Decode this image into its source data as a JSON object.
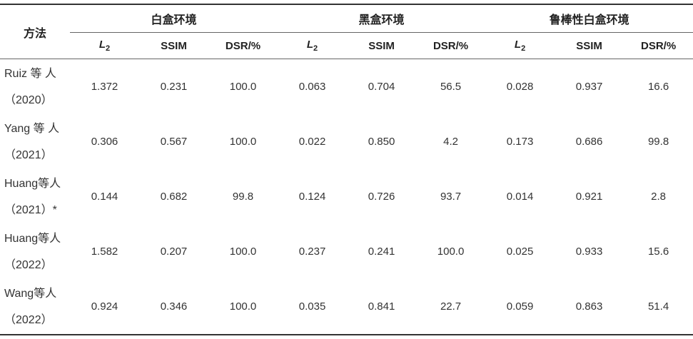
{
  "header": {
    "method_label": "方法",
    "groups": [
      "白盒环境",
      "黑盒环境",
      "鲁棒性白盒环境"
    ],
    "metric_l2": {
      "base": "L",
      "sub": "2"
    },
    "metric_ssim": "SSIM",
    "metric_dsr": "DSR/%"
  },
  "rows": [
    {
      "method_line1": "Ruiz 等 人",
      "method_line2": "（2020）",
      "values": [
        "1.372",
        "0.231",
        "100.0",
        "0.063",
        "0.704",
        "56.5",
        "0.028",
        "0.937",
        "16.6"
      ]
    },
    {
      "method_line1": "Yang 等 人",
      "method_line2": "（2021）",
      "values": [
        "0.306",
        "0.567",
        "100.0",
        "0.022",
        "0.850",
        "4.2",
        "0.173",
        "0.686",
        "99.8"
      ]
    },
    {
      "method_line1": "Huang等人",
      "method_line2": "（2021）*",
      "values": [
        "0.144",
        "0.682",
        "99.8",
        "0.124",
        "0.726",
        "93.7",
        "0.014",
        "0.921",
        "2.8"
      ]
    },
    {
      "method_line1": "Huang等人",
      "method_line2": "（2022）",
      "values": [
        "1.582",
        "0.207",
        "100.0",
        "0.237",
        "0.241",
        "100.0",
        "0.025",
        "0.933",
        "15.6"
      ]
    },
    {
      "method_line1": "Wang等人",
      "method_line2": "（2022）",
      "values": [
        "0.924",
        "0.346",
        "100.0",
        "0.035",
        "0.841",
        "22.7",
        "0.059",
        "0.863",
        "51.4"
      ]
    }
  ]
}
